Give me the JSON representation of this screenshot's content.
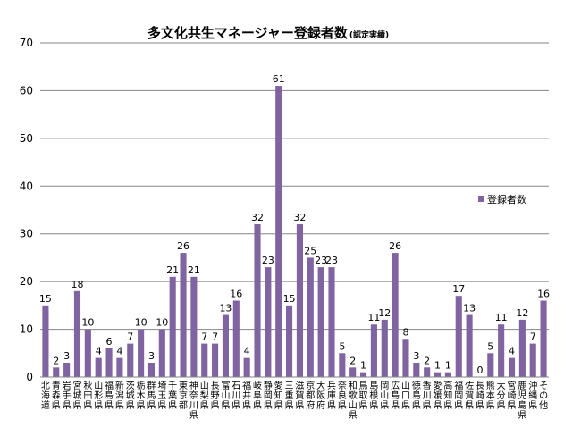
{
  "chart_data": {
    "type": "bar",
    "title": "多文化共生マネージャー登録者数",
    "subtitle": "(認定実績)",
    "xlabel": "",
    "ylabel": "",
    "ylim": [
      0,
      70
    ],
    "yticks": [
      0,
      10,
      20,
      30,
      40,
      50,
      60,
      70
    ],
    "grid": true,
    "legend_position": "right",
    "series_color": "#8064A2",
    "categories": [
      "北海道",
      "青森県",
      "岩手県",
      "宮城県",
      "秋田県",
      "山形県",
      "福島県",
      "新潟県",
      "茨城県",
      "栃木県",
      "群馬県",
      "埼玉県",
      "千葉県",
      "東京都",
      "神奈川県",
      "山梨県",
      "長野県",
      "富山県",
      "石川県",
      "福井県",
      "岐阜県",
      "静岡県",
      "愛知県",
      "三重県",
      "滋賀県",
      "京都府",
      "大阪府",
      "兵庫県",
      "奈良県",
      "和歌山県",
      "鳥取県",
      "島根県",
      "岡山県",
      "広島県",
      "山口県",
      "徳島県",
      "香川県",
      "愛媛県",
      "高知県",
      "福岡県",
      "佐賀県",
      "長崎県",
      "熊本県",
      "大分県",
      "宮崎県",
      "鹿児島県",
      "沖縄県",
      "その他"
    ],
    "series": [
      {
        "name": "登録者数",
        "values": [
          15,
          2,
          3,
          18,
          10,
          4,
          6,
          4,
          7,
          10,
          3,
          10,
          21,
          26,
          21,
          7,
          7,
          13,
          16,
          4,
          32,
          23,
          61,
          15,
          32,
          25,
          23,
          23,
          5,
          2,
          1,
          11,
          12,
          26,
          8,
          3,
          2,
          1,
          1,
          17,
          13,
          0,
          5,
          11,
          4,
          12,
          7,
          16
        ]
      }
    ]
  }
}
